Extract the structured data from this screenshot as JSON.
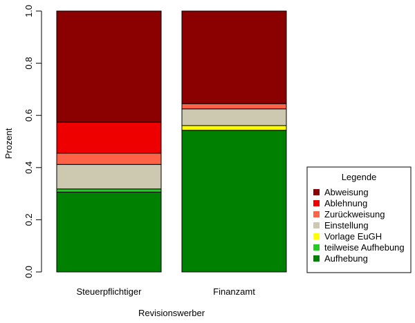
{
  "chart_data": {
    "type": "bar",
    "stacked": true,
    "categories": [
      "Steuerpflichtiger",
      "Finanzamt"
    ],
    "series": [
      {
        "name": "Aufhebung",
        "color": "#008000",
        "values": [
          0.306,
          0.543
        ]
      },
      {
        "name": "teilweise Aufhebung",
        "color": "#22cc22",
        "values": [
          0.012,
          0.0
        ]
      },
      {
        "name": "Vorlage EuGH",
        "color": "#ffff00",
        "values": [
          0.0,
          0.018
        ]
      },
      {
        "name": "Einstellung",
        "color": "#cdc8b0",
        "values": [
          0.094,
          0.064
        ]
      },
      {
        "name": "Zurückweisung",
        "color": "#ff6347",
        "values": [
          0.043,
          0.02
        ]
      },
      {
        "name": "Ablehnung",
        "color": "#ee0000",
        "values": [
          0.119,
          0.0
        ]
      },
      {
        "name": "Abweisung",
        "color": "#8b0000",
        "values": [
          0.426,
          0.355
        ]
      }
    ],
    "ylabel": "Prozent",
    "xlabel": "Revisionswerber",
    "ylim": [
      0,
      1
    ],
    "yticks": [
      "0.0",
      "0.2",
      "0.4",
      "0.6",
      "0.8",
      "1.0"
    ],
    "legend": {
      "title": "Legende",
      "placement": "right",
      "entries": [
        "Abweisung",
        "Ablehnung",
        "Zurückweisung",
        "Einstellung",
        "Vorlage EuGH",
        "teilweise Aufhebung",
        "Aufhebung"
      ]
    },
    "grid": false
  }
}
